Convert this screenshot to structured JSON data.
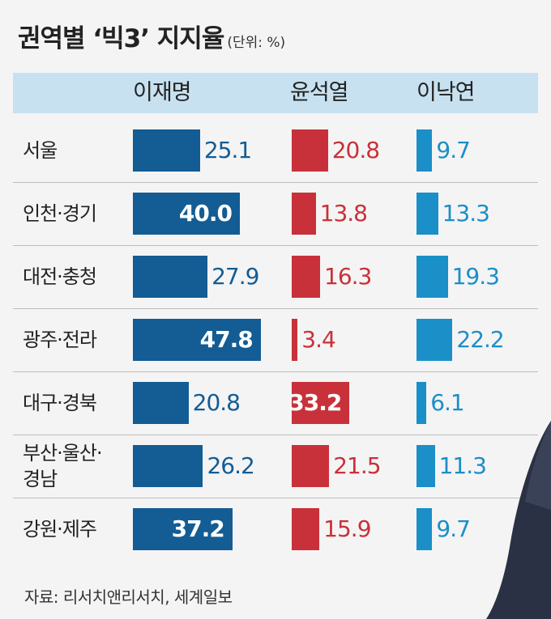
{
  "title": "권역별 ‘빅3’ 지지율",
  "unit": "(단위: %)",
  "source": "자료: 리서치앤리서치, 세계일보",
  "colors": {
    "lee_jaemyung": "#135c94",
    "yoon_sukyeol": "#c9313a",
    "lee_nakyon": "#1a8fc8",
    "header_bg": "#c7e1f0"
  },
  "chart_data": {
    "type": "bar",
    "title": "권역별 ‘빅3’ 지지율",
    "unit": "(단위: %)",
    "categories": [
      "서울",
      "인천·경기",
      "대전·충청",
      "광주·전라",
      "대구·경북",
      "부산·울산·\n경남",
      "강원·제주"
    ],
    "series": [
      {
        "name": "이재명",
        "values": [
          25.1,
          40.0,
          27.9,
          47.8,
          20.8,
          26.2,
          37.2
        ]
      },
      {
        "name": "윤석열",
        "values": [
          20.8,
          13.8,
          16.3,
          3.4,
          33.2,
          21.5,
          15.9
        ]
      },
      {
        "name": "이낙연",
        "values": [
          9.7,
          13.3,
          19.3,
          22.2,
          6.1,
          11.3,
          9.7
        ]
      }
    ],
    "value_labels": [
      [
        "25.1",
        "40.0",
        "27.9",
        "47.8",
        "20.8",
        "26.2",
        "37.2"
      ],
      [
        "20.8",
        "13.8",
        "16.3",
        "3.4",
        "33.2",
        "21.5",
        "15.9"
      ],
      [
        "9.7",
        "13.3",
        "19.3",
        "22.2",
        "6.1",
        "11.3",
        "9.7"
      ]
    ],
    "inside_label": [
      [
        false,
        true,
        false,
        true,
        false,
        false,
        true
      ],
      [
        false,
        false,
        false,
        false,
        true,
        false,
        false
      ],
      [
        false,
        false,
        false,
        false,
        false,
        false,
        false
      ]
    ],
    "grid": false,
    "legend": "top"
  }
}
